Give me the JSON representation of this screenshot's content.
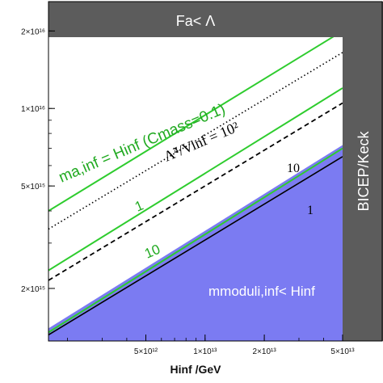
{
  "chart_data": {
    "type": "line",
    "xscale": "log",
    "yscale": "log",
    "xlim": [
      1600000000000.0,
      50000000000000.0
    ],
    "ylim": [
      1250000000000000.0,
      2.6e+16
    ],
    "xlabel": "Hinf /GeV",
    "ylabel": "",
    "x_ticks": [
      {
        "value": 5000000000000.0,
        "label": "5×10¹²"
      },
      {
        "value": 10000000000000.0,
        "label": "1×10¹³"
      },
      {
        "value": 20000000000000.0,
        "label": "2×10¹³"
      },
      {
        "value": 50000000000000.0,
        "label": "5×10¹³"
      }
    ],
    "y_ticks": [
      {
        "value": 2000000000000000.0,
        "label": "2×10¹⁵"
      },
      {
        "value": 5000000000000000.0,
        "label": "5×10¹⁵"
      },
      {
        "value": 1e+16,
        "label": "1×10¹⁶"
      },
      {
        "value": 2e+16,
        "label": "2×10¹⁶"
      }
    ],
    "regions": {
      "top_band_label": "Fa< Λ",
      "right_band_label": "BICEP/Keck",
      "blue_region_label": "mmoduli,inf< Hinf"
    },
    "colors": {
      "region_fill": "#7b7bf2",
      "band_fill": "#5c5c5c",
      "green": "#2ecc2e",
      "black": "#000000"
    },
    "series": [
      {
        "name": "0.1",
        "style": "green-solid",
        "points": [
          [
            1600000000000.0,
            4000000000000000.0
          ],
          [
            50000000000000.0,
            2e+16
          ]
        ]
      },
      {
        "name": "1",
        "style": "green-solid",
        "points": [
          [
            1600000000000.0,
            2350000000000000.0
          ],
          [
            50000000000000.0,
            1.2e+16
          ]
        ]
      },
      {
        "name": "10",
        "style": "green-solid",
        "points": [
          [
            1600000000000.0,
            1350000000000000.0
          ],
          [
            50000000000000.0,
            7000000000000000.0
          ]
        ]
      },
      {
        "name": "10²",
        "style": "black-dotted",
        "points": [
          [
            1600000000000.0,
            3400000000000000.0
          ],
          [
            50000000000000.0,
            1.65e+16
          ]
        ]
      },
      {
        "name": "10",
        "style": "black-dashed",
        "points": [
          [
            1600000000000.0,
            2150000000000000.0
          ],
          [
            50000000000000.0,
            1.05e+16
          ]
        ]
      },
      {
        "name": "1",
        "style": "black-solid",
        "points": [
          [
            1600000000000.0,
            1320000000000000.0
          ],
          [
            50000000000000.0,
            6500000000000000.0
          ]
        ]
      }
    ],
    "annotations": {
      "green_main": "ma,inf = Hinf (Cmass=0.1)",
      "green_1": "1",
      "green_10": "10",
      "black_ratio": "Λ̃⁴/Vinf = 10²",
      "black_10": "10",
      "black_1": "1"
    }
  }
}
